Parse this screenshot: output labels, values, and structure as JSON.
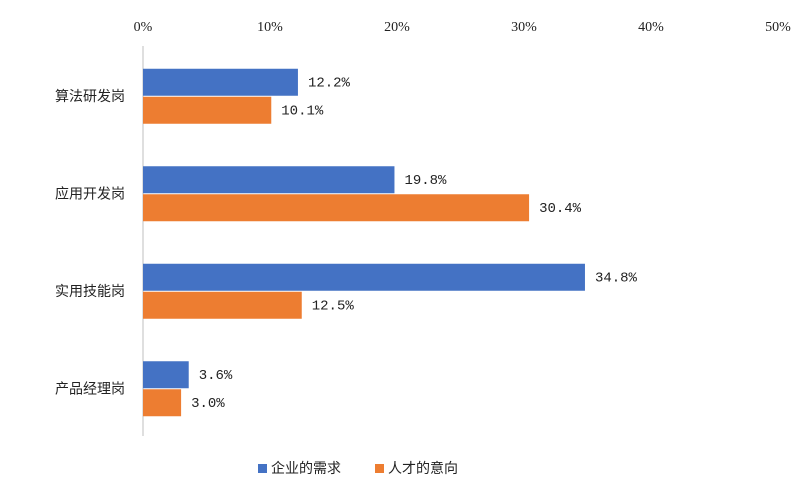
{
  "chart_data": {
    "type": "bar",
    "orientation": "horizontal",
    "categories": [
      "算法研发岗",
      "应用开发岗",
      "实用技能岗",
      "产品经理岗"
    ],
    "series": [
      {
        "name": "企业的需求",
        "color": "#4472c4",
        "values": [
          12.2,
          19.8,
          34.8,
          3.6
        ],
        "value_labels": [
          "12.2%",
          "19.8%",
          "34.8%",
          "3.6%"
        ]
      },
      {
        "name": "人才的意向",
        "color": "#ed7d31",
        "values": [
          10.1,
          30.4,
          12.5,
          3.0
        ],
        "value_labels": [
          "10.1%",
          "30.4%",
          "12.5%",
          "3.0%"
        ]
      }
    ],
    "xlim": [
      0,
      50
    ],
    "xticks": [
      {
        "value": 0,
        "label": "0%"
      },
      {
        "value": 10,
        "label": "10%"
      },
      {
        "value": 20,
        "label": "20%"
      },
      {
        "value": 30,
        "label": "30%"
      },
      {
        "value": 40,
        "label": "40%"
      },
      {
        "value": 50,
        "label": "50%"
      }
    ],
    "legend": "bottom"
  }
}
